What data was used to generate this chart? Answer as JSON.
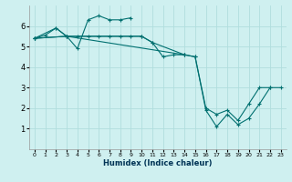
{
  "title": "",
  "xlabel": "Humidex (Indice chaleur)",
  "bg_color": "#cff0f0",
  "line_color": "#007070",
  "grid_color": "#b0dede",
  "xlim": [
    -0.5,
    23.5
  ],
  "ylim": [
    0,
    7
  ],
  "xticks": [
    0,
    1,
    2,
    3,
    4,
    5,
    6,
    7,
    8,
    9,
    10,
    11,
    12,
    13,
    14,
    15,
    16,
    17,
    18,
    19,
    20,
    21,
    22,
    23
  ],
  "yticks": [
    1,
    2,
    3,
    4,
    5,
    6
  ],
  "line1_x": [
    0,
    1,
    2,
    3,
    4,
    5,
    6,
    7,
    8,
    9,
    10,
    11,
    14
  ],
  "line1_y": [
    5.4,
    5.55,
    5.9,
    5.5,
    5.5,
    5.5,
    5.5,
    5.5,
    5.5,
    5.5,
    5.5,
    5.2,
    4.6
  ],
  "line2_x": [
    0,
    2,
    3,
    4,
    5,
    6,
    7,
    8,
    9
  ],
  "line2_y": [
    5.4,
    5.9,
    5.5,
    4.9,
    6.3,
    6.5,
    6.3,
    6.3,
    6.4
  ],
  "line3_x": [
    0,
    3,
    10,
    11,
    12,
    13,
    14,
    15,
    16,
    17,
    18,
    19,
    20,
    21,
    22,
    23
  ],
  "line3_y": [
    5.4,
    5.5,
    5.5,
    5.2,
    4.5,
    4.6,
    4.6,
    4.5,
    1.9,
    1.1,
    1.7,
    1.2,
    1.5,
    2.2,
    3.0,
    3.0
  ],
  "line4_x": [
    0,
    3,
    14,
    15,
    16,
    17,
    18,
    19,
    20,
    21,
    22
  ],
  "line4_y": [
    5.4,
    5.5,
    4.6,
    4.5,
    2.0,
    1.7,
    1.9,
    1.4,
    2.2,
    3.0,
    3.0
  ],
  "figsize": [
    3.2,
    2.0
  ],
  "dpi": 100
}
